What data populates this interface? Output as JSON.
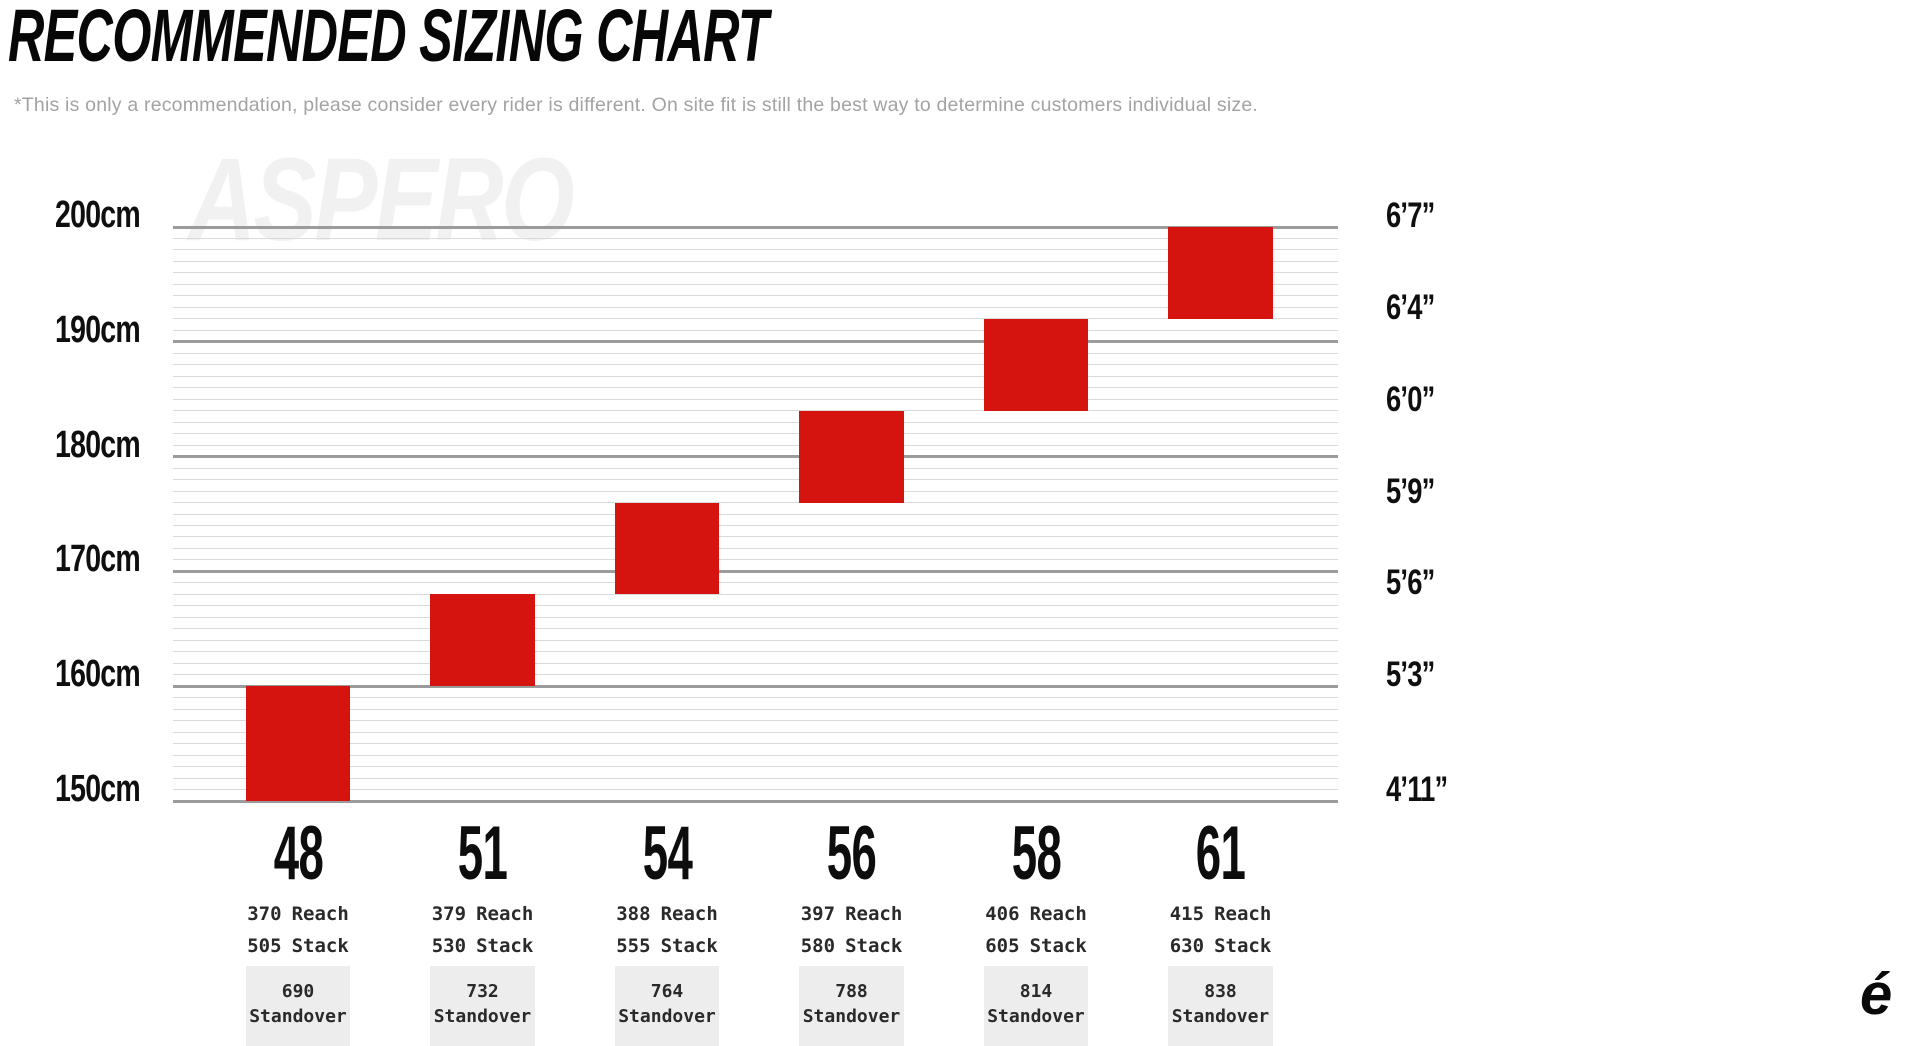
{
  "page": {
    "title": "RECOMMENDED SIZING CHART",
    "subtitle": "*This is only a recommendation, please consider every rider is different. On site fit is still the best way to determine customers individual size.",
    "watermark": "ASPERO",
    "brand_logo_glyph": "é"
  },
  "colors": {
    "bar_red": "#d6140f",
    "major_gridline": "#9b9b9b",
    "minor_gridline": "#dadada",
    "standover_box_bg": "#ededed",
    "subtitle_text": "#a3a3a3",
    "watermark_text": "#f1f1f1",
    "label_text": "#0f0f0f",
    "spec_text": "#2a2a2a"
  },
  "chart_data": {
    "type": "bar",
    "orientation": "vertical-range",
    "title": "RECOMMENDED SIZING CHART",
    "ylim_cm": [
      150,
      200
    ],
    "gridlines": {
      "minor_step_cm": 1,
      "major_step_cm": 10
    },
    "legend_position": "none",
    "y_axis_left": {
      "unit": "cm",
      "ticks": [
        {
          "label": "200cm",
          "cm": 200
        },
        {
          "label": "190cm",
          "cm": 190
        },
        {
          "label": "180cm",
          "cm": 180
        },
        {
          "label": "170cm",
          "cm": 170
        },
        {
          "label": "160cm",
          "cm": 160
        },
        {
          "label": "150cm",
          "cm": 150
        }
      ]
    },
    "y_axis_right": {
      "unit": "ft-in",
      "ticks": [
        {
          "label": "6’7”",
          "cm": 200
        },
        {
          "label": "6’4”",
          "cm": 192
        },
        {
          "label": "6’0”",
          "cm": 184
        },
        {
          "label": "5’9”",
          "cm": 176
        },
        {
          "label": "5’6”",
          "cm": 168
        },
        {
          "label": "5’3”",
          "cm": 160
        },
        {
          "label": "4’11”",
          "cm": 150
        }
      ]
    },
    "labels": {
      "reach": "Reach",
      "stack": "Stack",
      "standover": "Standover"
    },
    "sizes": [
      {
        "size": "48",
        "height_range_cm": [
          150,
          160
        ],
        "reach": "370",
        "stack": "505",
        "standover": "690"
      },
      {
        "size": "51",
        "height_range_cm": [
          160,
          168
        ],
        "reach": "379",
        "stack": "530",
        "standover": "732"
      },
      {
        "size": "54",
        "height_range_cm": [
          168,
          176
        ],
        "reach": "388",
        "stack": "555",
        "standover": "764"
      },
      {
        "size": "56",
        "height_range_cm": [
          176,
          184
        ],
        "reach": "397",
        "stack": "580",
        "standover": "788"
      },
      {
        "size": "58",
        "height_range_cm": [
          184,
          192
        ],
        "reach": "406",
        "stack": "605",
        "standover": "814"
      },
      {
        "size": "61",
        "height_range_cm": [
          192,
          200
        ],
        "reach": "415",
        "stack": "630",
        "standover": "838"
      }
    ]
  }
}
